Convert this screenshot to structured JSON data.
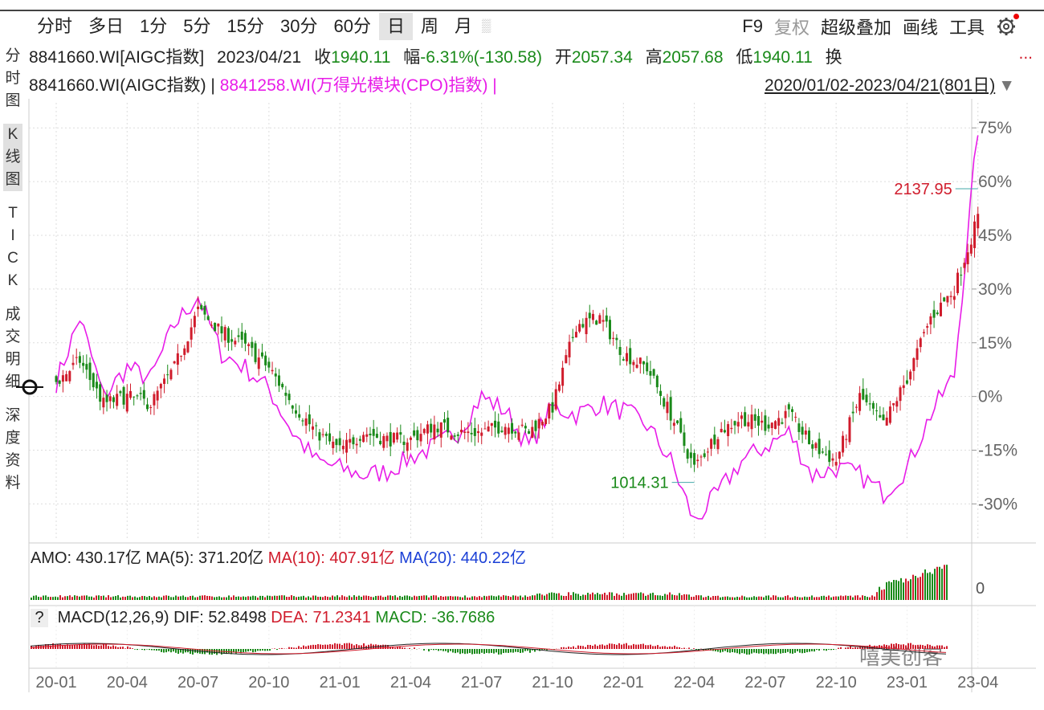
{
  "tabs": [
    "分时",
    "多日",
    "1分",
    "5分",
    "15分",
    "30分",
    "60分",
    "日",
    "周",
    "月"
  ],
  "active_tab": "日",
  "right_tools": {
    "f9": "F9",
    "fq": "复权",
    "overlay": "超级叠加",
    "draw": "画线",
    "tools": "工具"
  },
  "sidebar": [
    "分时图",
    "K线图",
    "TICK",
    "成交明细",
    "深度资料"
  ],
  "sidebar_active": "K线图",
  "info": {
    "code": "8841660.WI[AIGC指数]",
    "date": "2023/04/21",
    "close_label": "收",
    "close": "1940.11",
    "chg_label": "幅",
    "chg": "-6.31%(-130.58)",
    "open_label": "开",
    "open": "2057.34",
    "high_label": "高",
    "high": "2057.68",
    "low_label": "低",
    "low": "1940.11",
    "turnover_label": "换",
    "more": "..."
  },
  "legend": {
    "main": "8841660.WI(AIGC指数) |",
    "overlay": "8841258.WI(万得光模块(CPO)指数) |",
    "range": "2020/01/02-2023/04/21(801日)"
  },
  "amo": {
    "amo": "AMO: 430.17亿",
    "ma5": "MA(5): 371.20亿",
    "ma10": "MA(10): 407.91亿",
    "ma20": "MA(20): 440.22亿",
    "zero": "0"
  },
  "macd": {
    "q": "?",
    "name": "MACD(12,26,9)",
    "dif": "DIF: 52.8498",
    "dea": "DEA: 71.2341",
    "val": "MACD: -36.7686"
  },
  "watermark": "嘻美创客",
  "colors": {
    "up": "#d01c2c",
    "down": "#1a8a1a",
    "overlay": "#e81ce8",
    "ma_blue": "#1a3fd6"
  },
  "chart_data": {
    "type": "line",
    "x": [
      "20-01",
      "20-04",
      "20-07",
      "20-10",
      "21-01",
      "21-04",
      "21-07",
      "21-10",
      "22-01",
      "22-04",
      "22-07",
      "22-10",
      "23-01",
      "23-04"
    ],
    "ylabel_ticks": [
      "75%",
      "60%",
      "45%",
      "30%",
      "15%",
      "0%",
      "-15%",
      "-30%"
    ],
    "y_tick_values": [
      75,
      60,
      45,
      30,
      15,
      0,
      -15,
      -30
    ],
    "ylim": [
      -40,
      82
    ],
    "annotations": [
      {
        "text": "2137.95",
        "type": "high",
        "x": "23-04",
        "y": 58
      },
      {
        "text": "1014.31",
        "type": "low",
        "x": "22-04",
        "y": -24
      }
    ],
    "series": [
      {
        "name": "8841660.WI(AIGC指数)",
        "style": "candles",
        "values": [
          [
            "20-01",
            4
          ],
          [
            "20-02",
            10
          ],
          [
            "20-03",
            -2
          ],
          [
            "20-04",
            0
          ],
          [
            "20-05",
            -2
          ],
          [
            "20-06",
            8
          ],
          [
            "20-07",
            24
          ],
          [
            "20-08",
            18
          ],
          [
            "20-09",
            14
          ],
          [
            "20-10",
            8
          ],
          [
            "20-11",
            -2
          ],
          [
            "20-12",
            -10
          ],
          [
            "21-01",
            -15
          ],
          [
            "21-02",
            -10
          ],
          [
            "21-03",
            -12
          ],
          [
            "21-04",
            -12
          ],
          [
            "21-05",
            -8
          ],
          [
            "21-06",
            -10
          ],
          [
            "21-07",
            -10
          ],
          [
            "21-08",
            -8
          ],
          [
            "21-09",
            -10
          ],
          [
            "21-10",
            -3
          ],
          [
            "21-11",
            20
          ],
          [
            "21-12",
            22
          ],
          [
            "22-01",
            12
          ],
          [
            "22-02",
            8
          ],
          [
            "22-03",
            -5
          ],
          [
            "22-04",
            -20
          ],
          [
            "22-05",
            -10
          ],
          [
            "22-06",
            -6
          ],
          [
            "22-07",
            -8
          ],
          [
            "22-08",
            -5
          ],
          [
            "22-09",
            -14
          ],
          [
            "22-10",
            -18
          ],
          [
            "22-11",
            0
          ],
          [
            "22-12",
            -8
          ],
          [
            "23-01",
            5
          ],
          [
            "23-02",
            22
          ],
          [
            "23-03",
            30
          ],
          [
            "23-04",
            50
          ]
        ]
      },
      {
        "name": "8841258.WI(万得光模块(CPO)指数)",
        "style": "line",
        "values": [
          [
            "20-01",
            4
          ],
          [
            "20-02",
            22
          ],
          [
            "20-03",
            0
          ],
          [
            "20-04",
            8
          ],
          [
            "20-05",
            5
          ],
          [
            "20-06",
            20
          ],
          [
            "20-07",
            28
          ],
          [
            "20-08",
            12
          ],
          [
            "20-09",
            8
          ],
          [
            "20-10",
            2
          ],
          [
            "20-11",
            -10
          ],
          [
            "20-12",
            -18
          ],
          [
            "21-01",
            -20
          ],
          [
            "21-02",
            -22
          ],
          [
            "21-03",
            -21
          ],
          [
            "21-04",
            -17
          ],
          [
            "21-05",
            -14
          ],
          [
            "21-06",
            -10
          ],
          [
            "21-07",
            0
          ],
          [
            "21-08",
            -4
          ],
          [
            "21-09",
            -14
          ],
          [
            "21-10",
            -3
          ],
          [
            "21-11",
            -5
          ],
          [
            "21-12",
            -2
          ],
          [
            "22-01",
            -4
          ],
          [
            "22-02",
            -8
          ],
          [
            "22-03",
            -18
          ],
          [
            "22-04",
            -35
          ],
          [
            "22-05",
            -27
          ],
          [
            "22-06",
            -18
          ],
          [
            "22-07",
            -14
          ],
          [
            "22-08",
            -10
          ],
          [
            "22-09",
            -22
          ],
          [
            "22-10",
            -20
          ],
          [
            "22-11",
            -22
          ],
          [
            "22-12",
            -27
          ],
          [
            "23-01",
            -20
          ],
          [
            "23-02",
            -5
          ],
          [
            "23-03",
            6
          ],
          [
            "23-04",
            75
          ]
        ]
      }
    ]
  }
}
